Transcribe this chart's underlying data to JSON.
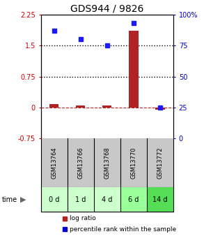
{
  "title": "GDS944 / 9826",
  "samples": [
    "GSM13764",
    "GSM13766",
    "GSM13768",
    "GSM13770",
    "GSM13772"
  ],
  "time_labels": [
    "0 d",
    "1 d",
    "4 d",
    "6 d",
    "14 d"
  ],
  "log_ratio": [
    0.08,
    0.05,
    0.05,
    1.85,
    -0.05
  ],
  "percentile_rank": [
    87,
    80,
    75,
    93,
    25
  ],
  "left_ylim": [
    -0.75,
    2.25
  ],
  "right_ylim": [
    0,
    100
  ],
  "left_yticks": [
    -0.75,
    0,
    0.75,
    1.5,
    2.25
  ],
  "right_yticks": [
    0,
    25,
    50,
    75,
    100
  ],
  "right_tick_labels": [
    "0",
    "25",
    "50",
    "75",
    "100%"
  ],
  "hline_values": [
    1.5,
    0.75
  ],
  "dashed_hline": 0,
  "bar_color": "#b22222",
  "dot_color": "#1a1aff",
  "sample_bg_color": "#c8c8c8",
  "time_bg_colors": [
    "#ccffcc",
    "#ccffcc",
    "#ccffcc",
    "#99ff99",
    "#55dd55"
  ],
  "legend_bar_color": "#b22222",
  "legend_dot_color": "#0000cc",
  "left_tick_color": "#cc0000",
  "right_tick_color": "#0000cc",
  "title_fontsize": 10,
  "tick_fontsize": 7,
  "label_fontsize": 7
}
